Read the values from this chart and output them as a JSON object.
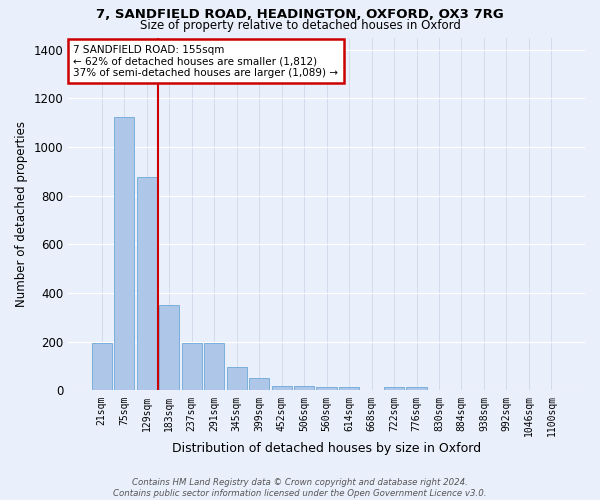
{
  "title1": "7, SANDFIELD ROAD, HEADINGTON, OXFORD, OX3 7RG",
  "title2": "Size of property relative to detached houses in Oxford",
  "xlabel": "Distribution of detached houses by size in Oxford",
  "ylabel": "Number of detached properties",
  "categories": [
    "21sqm",
    "75sqm",
    "129sqm",
    "183sqm",
    "237sqm",
    "291sqm",
    "345sqm",
    "399sqm",
    "452sqm",
    "506sqm",
    "560sqm",
    "614sqm",
    "668sqm",
    "722sqm",
    "776sqm",
    "830sqm",
    "884sqm",
    "938sqm",
    "992sqm",
    "1046sqm",
    "1100sqm"
  ],
  "values": [
    197,
    1123,
    878,
    350,
    193,
    193,
    97,
    50,
    20,
    20,
    15,
    15,
    0,
    15,
    15,
    0,
    0,
    0,
    0,
    0,
    0
  ],
  "bar_color": "#aec6e8",
  "bar_edge_color": "#5a9fd4",
  "bg_color": "#eaf0fb",
  "vline_color": "#cc0000",
  "annotation_text": "7 SANDFIELD ROAD: 155sqm\n← 62% of detached houses are smaller (1,812)\n37% of semi-detached houses are larger (1,089) →",
  "annotation_box_color": "#ffffff",
  "annotation_box_edge": "#cc0000",
  "footnote": "Contains HM Land Registry data © Crown copyright and database right 2024.\nContains public sector information licensed under the Open Government Licence v3.0.",
  "ylim": [
    0,
    1450
  ],
  "yticks": [
    0,
    200,
    400,
    600,
    800,
    1000,
    1200,
    1400
  ],
  "vline_pos": 2.5
}
